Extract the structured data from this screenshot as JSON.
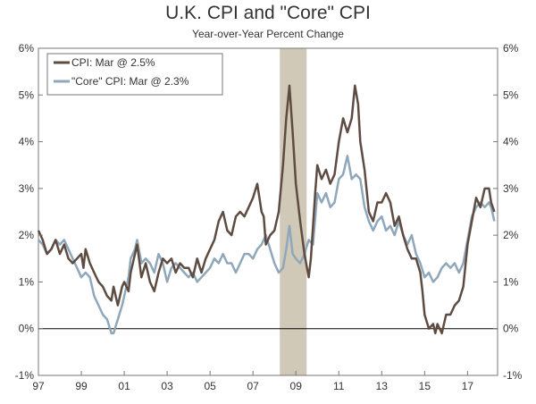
{
  "title": "U.K. CPI and \"Core\" CPI",
  "subtitle": "Year-over-Year Percent Change",
  "colors": {
    "cpi": "#5e4c42",
    "core": "#8fa7bb",
    "recession": "#d1c9b8",
    "axis": "#777777",
    "zero": "#000000"
  },
  "chart_data": {
    "type": "line",
    "title": "U.K. CPI and \"Core\" CPI",
    "subtitle": "Year-over-Year Percent Change",
    "xlabel": "",
    "ylabel": "",
    "xlim": [
      1997.0,
      2018.4
    ],
    "ylim": [
      -1,
      6
    ],
    "y_ticks": [
      "-1%",
      "0%",
      "1%",
      "2%",
      "3%",
      "4%",
      "5%",
      "6%"
    ],
    "x_ticks": [
      {
        "x": 1997,
        "label": "97"
      },
      {
        "x": 1999,
        "label": "99"
      },
      {
        "x": 2001,
        "label": "01"
      },
      {
        "x": 2003,
        "label": "03"
      },
      {
        "x": 2005,
        "label": "05"
      },
      {
        "x": 2007,
        "label": "07"
      },
      {
        "x": 2009,
        "label": "09"
      },
      {
        "x": 2011,
        "label": "11"
      },
      {
        "x": 2013,
        "label": "13"
      },
      {
        "x": 2015,
        "label": "15"
      },
      {
        "x": 2017,
        "label": "17"
      }
    ],
    "grid": false,
    "dual_y_axis": true,
    "legend_position": "top-left",
    "shaded_regions": [
      {
        "start": 2008.25,
        "end": 2009.5
      }
    ],
    "series": [
      {
        "name": "CPI: Mar @ 2.5%",
        "color": "#5e4c42",
        "points": [
          [
            1997.0,
            2.1
          ],
          [
            1997.2,
            1.9
          ],
          [
            1997.4,
            1.6
          ],
          [
            1997.6,
            1.7
          ],
          [
            1997.8,
            1.9
          ],
          [
            1998.0,
            1.6
          ],
          [
            1998.2,
            1.8
          ],
          [
            1998.4,
            1.5
          ],
          [
            1998.6,
            1.4
          ],
          [
            1998.8,
            1.5
          ],
          [
            1999.0,
            1.6
          ],
          [
            1999.1,
            1.3
          ],
          [
            1999.2,
            1.7
          ],
          [
            1999.4,
            1.4
          ],
          [
            1999.6,
            1.2
          ],
          [
            1999.8,
            1.0
          ],
          [
            2000.0,
            0.9
          ],
          [
            2000.2,
            0.7
          ],
          [
            2000.4,
            0.6
          ],
          [
            2000.5,
            0.9
          ],
          [
            2000.7,
            0.5
          ],
          [
            2000.9,
            0.9
          ],
          [
            2001.0,
            1.0
          ],
          [
            2001.2,
            0.8
          ],
          [
            2001.3,
            1.2
          ],
          [
            2001.5,
            1.6
          ],
          [
            2001.6,
            1.8
          ],
          [
            2001.8,
            1.1
          ],
          [
            2002.0,
            1.4
          ],
          [
            2002.2,
            1.0
          ],
          [
            2002.4,
            0.8
          ],
          [
            2002.6,
            1.2
          ],
          [
            2002.8,
            1.5
          ],
          [
            2003.0,
            1.4
          ],
          [
            2003.2,
            1.5
          ],
          [
            2003.4,
            1.2
          ],
          [
            2003.6,
            1.4
          ],
          [
            2003.8,
            1.3
          ],
          [
            2004.0,
            1.3
          ],
          [
            2004.2,
            1.1
          ],
          [
            2004.4,
            1.5
          ],
          [
            2004.6,
            1.2
          ],
          [
            2004.8,
            1.5
          ],
          [
            2005.0,
            1.7
          ],
          [
            2005.2,
            1.9
          ],
          [
            2005.4,
            2.3
          ],
          [
            2005.6,
            2.5
          ],
          [
            2005.8,
            2.1
          ],
          [
            2006.0,
            2.0
          ],
          [
            2006.2,
            2.4
          ],
          [
            2006.4,
            2.5
          ],
          [
            2006.6,
            2.4
          ],
          [
            2006.8,
            2.6
          ],
          [
            2007.0,
            2.8
          ],
          [
            2007.2,
            3.1
          ],
          [
            2007.4,
            2.5
          ],
          [
            2007.5,
            2.4
          ],
          [
            2007.6,
            1.8
          ],
          [
            2007.8,
            2.0
          ],
          [
            2008.0,
            2.1
          ],
          [
            2008.2,
            2.5
          ],
          [
            2008.4,
            3.5
          ],
          [
            2008.55,
            4.5
          ],
          [
            2008.7,
            5.2
          ],
          [
            2008.85,
            4.2
          ],
          [
            2009.0,
            3.1
          ],
          [
            2009.2,
            2.3
          ],
          [
            2009.4,
            1.6
          ],
          [
            2009.6,
            1.1
          ],
          [
            2009.7,
            1.5
          ],
          [
            2009.9,
            2.9
          ],
          [
            2010.0,
            3.5
          ],
          [
            2010.2,
            3.2
          ],
          [
            2010.4,
            3.4
          ],
          [
            2010.6,
            3.1
          ],
          [
            2010.8,
            3.3
          ],
          [
            2011.0,
            4.0
          ],
          [
            2011.2,
            4.5
          ],
          [
            2011.4,
            4.2
          ],
          [
            2011.6,
            4.5
          ],
          [
            2011.75,
            5.2
          ],
          [
            2011.9,
            4.8
          ],
          [
            2012.0,
            4.0
          ],
          [
            2012.2,
            3.4
          ],
          [
            2012.4,
            2.5
          ],
          [
            2012.6,
            2.3
          ],
          [
            2012.8,
            2.7
          ],
          [
            2013.0,
            2.7
          ],
          [
            2013.2,
            2.9
          ],
          [
            2013.4,
            2.7
          ],
          [
            2013.6,
            2.2
          ],
          [
            2013.8,
            2.4
          ],
          [
            2014.0,
            2.0
          ],
          [
            2014.2,
            1.7
          ],
          [
            2014.4,
            1.5
          ],
          [
            2014.6,
            1.5
          ],
          [
            2014.8,
            1.2
          ],
          [
            2014.9,
            0.8
          ],
          [
            2015.0,
            0.3
          ],
          [
            2015.2,
            0.0
          ],
          [
            2015.4,
            0.1
          ],
          [
            2015.5,
            -0.1
          ],
          [
            2015.6,
            0.1
          ],
          [
            2015.8,
            -0.1
          ],
          [
            2016.0,
            0.3
          ],
          [
            2016.2,
            0.3
          ],
          [
            2016.4,
            0.5
          ],
          [
            2016.6,
            0.6
          ],
          [
            2016.8,
            0.9
          ],
          [
            2017.0,
            1.8
          ],
          [
            2017.2,
            2.3
          ],
          [
            2017.4,
            2.8
          ],
          [
            2017.6,
            2.6
          ],
          [
            2017.8,
            3.0
          ],
          [
            2018.0,
            3.0
          ],
          [
            2018.1,
            2.7
          ],
          [
            2018.25,
            2.5
          ]
        ]
      },
      {
        "name": "\"Core\" CPI: Mar @ 2.3%",
        "color": "#8fa7bb",
        "points": [
          [
            1997.0,
            1.9
          ],
          [
            1997.2,
            1.8
          ],
          [
            1997.4,
            1.6
          ],
          [
            1997.6,
            1.7
          ],
          [
            1997.8,
            1.9
          ],
          [
            1998.0,
            1.8
          ],
          [
            1998.2,
            1.9
          ],
          [
            1998.4,
            1.7
          ],
          [
            1998.6,
            1.5
          ],
          [
            1998.8,
            1.3
          ],
          [
            1999.0,
            1.1
          ],
          [
            1999.2,
            1.2
          ],
          [
            1999.4,
            1.1
          ],
          [
            1999.6,
            0.7
          ],
          [
            1999.8,
            0.5
          ],
          [
            2000.0,
            0.3
          ],
          [
            2000.2,
            0.2
          ],
          [
            2000.4,
            -0.1
          ],
          [
            2000.5,
            -0.1
          ],
          [
            2000.7,
            0.2
          ],
          [
            2000.9,
            0.5
          ],
          [
            2001.0,
            0.7
          ],
          [
            2001.2,
            1.1
          ],
          [
            2001.3,
            1.5
          ],
          [
            2001.5,
            1.7
          ],
          [
            2001.6,
            1.9
          ],
          [
            2001.8,
            1.4
          ],
          [
            2002.0,
            1.5
          ],
          [
            2002.2,
            1.4
          ],
          [
            2002.4,
            1.2
          ],
          [
            2002.6,
            1.6
          ],
          [
            2002.8,
            1.4
          ],
          [
            2003.0,
            1.0
          ],
          [
            2003.2,
            1.3
          ],
          [
            2003.4,
            1.4
          ],
          [
            2003.6,
            1.3
          ],
          [
            2003.8,
            1.2
          ],
          [
            2004.0,
            1.1
          ],
          [
            2004.2,
            1.2
          ],
          [
            2004.4,
            1.0
          ],
          [
            2004.6,
            1.1
          ],
          [
            2004.8,
            1.2
          ],
          [
            2005.0,
            1.3
          ],
          [
            2005.2,
            1.5
          ],
          [
            2005.4,
            1.4
          ],
          [
            2005.6,
            1.6
          ],
          [
            2005.8,
            1.4
          ],
          [
            2006.0,
            1.4
          ],
          [
            2006.2,
            1.2
          ],
          [
            2006.4,
            1.4
          ],
          [
            2006.6,
            1.6
          ],
          [
            2006.8,
            1.6
          ],
          [
            2007.0,
            1.5
          ],
          [
            2007.2,
            1.7
          ],
          [
            2007.4,
            1.8
          ],
          [
            2007.6,
            2.0
          ],
          [
            2007.8,
            1.7
          ],
          [
            2008.0,
            1.4
          ],
          [
            2008.2,
            1.2
          ],
          [
            2008.4,
            1.3
          ],
          [
            2008.55,
            1.7
          ],
          [
            2008.7,
            2.2
          ],
          [
            2008.85,
            1.6
          ],
          [
            2009.0,
            1.5
          ],
          [
            2009.2,
            1.4
          ],
          [
            2009.4,
            1.6
          ],
          [
            2009.6,
            1.9
          ],
          [
            2009.8,
            1.8
          ],
          [
            2010.0,
            2.9
          ],
          [
            2010.2,
            2.7
          ],
          [
            2010.4,
            2.9
          ],
          [
            2010.6,
            2.6
          ],
          [
            2010.8,
            2.7
          ],
          [
            2011.0,
            3.2
          ],
          [
            2011.2,
            3.3
          ],
          [
            2011.4,
            3.7
          ],
          [
            2011.6,
            3.2
          ],
          [
            2011.8,
            3.3
          ],
          [
            2012.0,
            3.2
          ],
          [
            2012.2,
            2.6
          ],
          [
            2012.4,
            2.3
          ],
          [
            2012.6,
            2.1
          ],
          [
            2012.8,
            2.3
          ],
          [
            2013.0,
            2.4
          ],
          [
            2013.2,
            2.1
          ],
          [
            2013.4,
            2.2
          ],
          [
            2013.6,
            2.0
          ],
          [
            2013.8,
            2.3
          ],
          [
            2014.0,
            2.0
          ],
          [
            2014.2,
            1.8
          ],
          [
            2014.4,
            2.0
          ],
          [
            2014.6,
            1.6
          ],
          [
            2014.8,
            1.4
          ],
          [
            2015.0,
            1.1
          ],
          [
            2015.2,
            1.2
          ],
          [
            2015.4,
            1.0
          ],
          [
            2015.6,
            1.1
          ],
          [
            2015.8,
            1.3
          ],
          [
            2016.0,
            1.4
          ],
          [
            2016.2,
            1.3
          ],
          [
            2016.4,
            1.4
          ],
          [
            2016.6,
            1.2
          ],
          [
            2016.8,
            1.4
          ],
          [
            2017.0,
            1.9
          ],
          [
            2017.2,
            2.4
          ],
          [
            2017.4,
            2.6
          ],
          [
            2017.6,
            2.7
          ],
          [
            2017.8,
            2.6
          ],
          [
            2018.0,
            2.7
          ],
          [
            2018.1,
            2.6
          ],
          [
            2018.25,
            2.3
          ]
        ]
      }
    ]
  }
}
